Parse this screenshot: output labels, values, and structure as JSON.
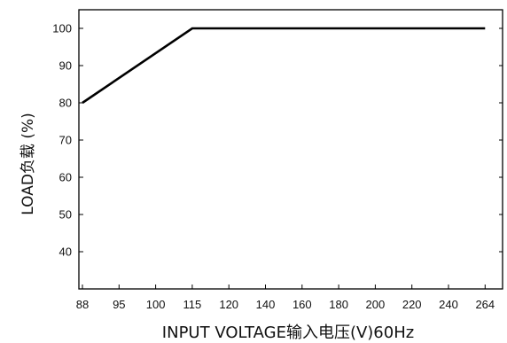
{
  "chart_data": {
    "type": "line",
    "title": "",
    "xlabel": "INPUT  VOLTAGE输入电压(V)60Hz",
    "ylabel": "LOAD负载 (%)",
    "x_ticks": [
      "88",
      "95",
      "100",
      "115",
      "120",
      "140",
      "160",
      "180",
      "200",
      "220",
      "240",
      "264"
    ],
    "y_ticks": [
      "40",
      "50",
      "60",
      "70",
      "80",
      "90",
      "100"
    ],
    "ylim": [
      30,
      106
    ],
    "grid": false,
    "legend": "none",
    "line_color": "#000000",
    "series": [
      {
        "x": [
          88,
          115,
          264
        ],
        "y": [
          80,
          100,
          100
        ]
      }
    ]
  }
}
